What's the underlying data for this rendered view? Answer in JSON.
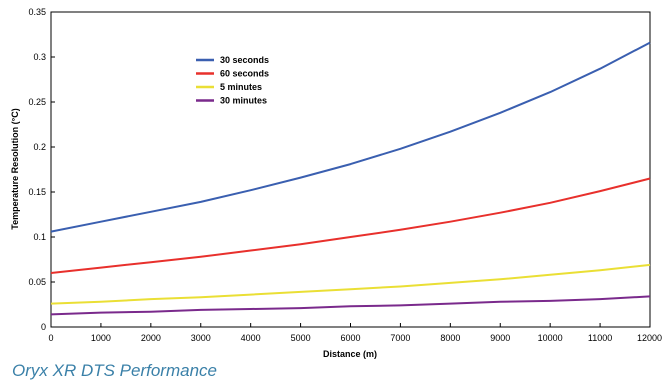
{
  "caption": "Oryx XR DTS Performance",
  "chart_data": {
    "type": "line",
    "title": "",
    "xlabel": "Distance (m)",
    "ylabel": "Temperature Resolution (°C)",
    "xlim": [
      0,
      12000
    ],
    "ylim": [
      0,
      0.35
    ],
    "xticks": [
      0,
      1000,
      2000,
      3000,
      4000,
      5000,
      6000,
      7000,
      8000,
      9000,
      10000,
      11000,
      12000
    ],
    "xtick_labels": [
      "0",
      "1000",
      "2000",
      "3000",
      "4000",
      "5000",
      "6000",
      "7000",
      "8000",
      "9000",
      "10000",
      "11000",
      "12000"
    ],
    "yticks": [
      0,
      0.05,
      0.1,
      0.15,
      0.2,
      0.25,
      0.3,
      0.35
    ],
    "ytick_labels": [
      "0",
      "0.05",
      "0.1",
      "0.15",
      "0.2",
      "0.25",
      "0.3",
      "0.35"
    ],
    "grid": false,
    "legend": "top-left",
    "x": [
      0,
      1000,
      2000,
      3000,
      4000,
      5000,
      6000,
      7000,
      8000,
      9000,
      10000,
      11000,
      12000
    ],
    "series": [
      {
        "name": "30 seconds",
        "color": "#3a5fb0",
        "values": [
          0.106,
          0.117,
          0.128,
          0.139,
          0.152,
          0.166,
          0.181,
          0.198,
          0.217,
          0.238,
          0.261,
          0.287,
          0.316
        ]
      },
      {
        "name": "60 seconds",
        "color": "#e8302c",
        "values": [
          0.06,
          0.066,
          0.072,
          0.078,
          0.085,
          0.092,
          0.1,
          0.108,
          0.117,
          0.127,
          0.138,
          0.151,
          0.165
        ]
      },
      {
        "name": "5 minutes",
        "color": "#eadf35",
        "values": [
          0.026,
          0.028,
          0.031,
          0.033,
          0.036,
          0.039,
          0.042,
          0.045,
          0.049,
          0.053,
          0.058,
          0.063,
          0.069
        ]
      },
      {
        "name": "30 minutes",
        "color": "#7a2a8c",
        "values": [
          0.014,
          0.016,
          0.017,
          0.019,
          0.02,
          0.021,
          0.023,
          0.024,
          0.026,
          0.028,
          0.029,
          0.031,
          0.034
        ]
      }
    ]
  }
}
